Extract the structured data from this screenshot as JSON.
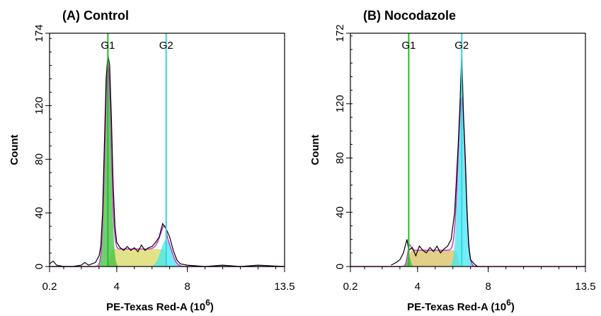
{
  "chart_data": [
    {
      "type": "area",
      "title": "(A) Control",
      "xlabel": "PE-Texas Red-A",
      "xlabel_unit": "(10",
      "xlabel_exp": "6",
      "xlabel_close": ")",
      "ylabel": "Count",
      "xlim": [
        0.2,
        13.5
      ],
      "ylim": [
        0,
        174
      ],
      "xticks": [
        "0.2",
        "4",
        "8",
        "13.5"
      ],
      "yticks": [
        "0",
        "40",
        "80",
        "120",
        "174"
      ],
      "gates": [
        {
          "name": "G1",
          "x": 3.5,
          "color": "#2fb52f"
        },
        {
          "name": "G2",
          "x": 6.8,
          "color": "#33d6e6"
        }
      ],
      "histogram": [
        [
          0.2,
          2
        ],
        [
          0.4,
          4
        ],
        [
          0.6,
          1
        ],
        [
          1,
          0
        ],
        [
          1.5,
          0
        ],
        [
          2.0,
          1
        ],
        [
          2.2,
          3
        ],
        [
          2.4,
          1
        ],
        [
          2.6,
          2
        ],
        [
          2.8,
          3
        ],
        [
          3.0,
          8
        ],
        [
          3.1,
          15
        ],
        [
          3.2,
          40
        ],
        [
          3.3,
          90
        ],
        [
          3.4,
          140
        ],
        [
          3.5,
          158
        ],
        [
          3.6,
          150
        ],
        [
          3.7,
          110
        ],
        [
          3.8,
          60
        ],
        [
          3.9,
          30
        ],
        [
          4.0,
          18
        ],
        [
          4.2,
          14
        ],
        [
          4.4,
          12
        ],
        [
          4.6,
          15
        ],
        [
          4.8,
          12
        ],
        [
          5.0,
          14
        ],
        [
          5.2,
          11
        ],
        [
          5.4,
          16
        ],
        [
          5.6,
          12
        ],
        [
          5.8,
          14
        ],
        [
          6.0,
          15
        ],
        [
          6.2,
          18
        ],
        [
          6.4,
          22
        ],
        [
          6.6,
          32
        ],
        [
          6.8,
          28
        ],
        [
          7.0,
          22
        ],
        [
          7.2,
          12
        ],
        [
          7.4,
          5
        ],
        [
          7.6,
          2
        ],
        [
          8,
          1
        ],
        [
          9,
          0
        ],
        [
          10,
          1
        ],
        [
          11,
          0
        ],
        [
          12,
          1
        ],
        [
          13.5,
          0
        ]
      ],
      "model": {
        "G1": {
          "mean": 3.5,
          "sd": 0.17,
          "height": 150,
          "color": "#3cc03c"
        },
        "S": {
          "level": 13,
          "from": 3.6,
          "to": 6.8,
          "color": "#d8d860"
        },
        "G2": {
          "mean": 6.8,
          "sd": 0.3,
          "height": 20,
          "color": "#40e8f0"
        },
        "fit_color": "#cc33cc"
      }
    },
    {
      "type": "area",
      "title": "(B) Nocodazole",
      "xlabel": "PE-Texas Red-A",
      "xlabel_unit": "(10",
      "xlabel_exp": "6",
      "xlabel_close": ")",
      "ylabel": "Count",
      "xlim": [
        0.2,
        13.5
      ],
      "ylim": [
        0,
        172
      ],
      "xticks": [
        "0.2",
        "4",
        "8",
        "13.5"
      ],
      "yticks": [
        "0",
        "40",
        "80",
        "120",
        "172"
      ],
      "gates": [
        {
          "name": "G1",
          "x": 3.5,
          "color": "#2fb52f"
        },
        {
          "name": "G2",
          "x": 6.5,
          "color": "#33d6e6"
        }
      ],
      "histogram": [
        [
          2.5,
          1
        ],
        [
          2.8,
          3
        ],
        [
          3.0,
          5
        ],
        [
          3.2,
          10
        ],
        [
          3.4,
          20
        ],
        [
          3.5,
          12
        ],
        [
          3.7,
          14
        ],
        [
          3.9,
          8
        ],
        [
          4.1,
          15
        ],
        [
          4.3,
          12
        ],
        [
          4.5,
          10
        ],
        [
          4.7,
          14
        ],
        [
          4.9,
          11
        ],
        [
          5.1,
          15
        ],
        [
          5.3,
          10
        ],
        [
          5.5,
          13
        ],
        [
          5.7,
          15
        ],
        [
          5.9,
          20
        ],
        [
          6.1,
          40
        ],
        [
          6.3,
          90
        ],
        [
          6.4,
          120
        ],
        [
          6.5,
          158
        ],
        [
          6.6,
          110
        ],
        [
          6.7,
          80
        ],
        [
          6.8,
          40
        ],
        [
          6.9,
          15
        ],
        [
          7.0,
          5
        ],
        [
          7.2,
          2
        ],
        [
          7.4,
          0
        ]
      ],
      "model": {
        "G1": {
          "mean": 3.5,
          "sd": 0.1,
          "height": 8,
          "color": "#3cc03c"
        },
        "S": {
          "level": 12,
          "from": 3.5,
          "to": 6.3,
          "color": "#d8c060"
        },
        "G2": {
          "mean": 6.5,
          "sd": 0.2,
          "height": 125,
          "color": "#40e8f0"
        },
        "fit_color": "#cc33cc"
      }
    }
  ]
}
